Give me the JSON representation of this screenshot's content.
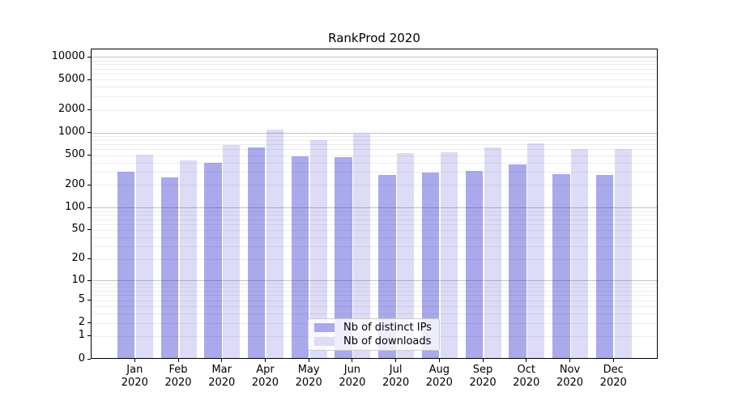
{
  "title": "RankProd 2020",
  "legend": {
    "items": [
      {
        "label": "Nb of distinct IPs",
        "color": "#a9a9eb"
      },
      {
        "label": "Nb of downloads",
        "color": "#dcdcf7"
      }
    ]
  },
  "colors": {
    "bar_distinct_ips": "rgba(40,40,205,0.40)",
    "bar_downloads": "rgba(40,40,205,0.16)",
    "grid_minor": "#ececec",
    "grid_major": "#c3c3c3",
    "axis": "#000000"
  },
  "chart_data": {
    "type": "bar",
    "title": "RankProd 2020",
    "categories": [
      "Jan",
      "Feb",
      "Mar",
      "Apr",
      "May",
      "Jun",
      "Jul",
      "Aug",
      "Sep",
      "Oct",
      "Nov",
      "Dec"
    ],
    "category_year": "2020",
    "series": [
      {
        "name": "Nb of distinct IPs",
        "values": [
          300,
          250,
          400,
          640,
          480,
          470,
          270,
          295,
          310,
          375,
          280,
          270
        ]
      },
      {
        "name": "Nb of downloads",
        "values": [
          505,
          425,
          680,
          1100,
          800,
          975,
          535,
          550,
          640,
          725,
          600,
          605
        ]
      }
    ],
    "xlabel": "",
    "ylabel": "",
    "y_scale": "log1p",
    "y_ticks": [
      0,
      1,
      2,
      5,
      10,
      20,
      50,
      100,
      200,
      500,
      1000,
      2000,
      5000,
      10000
    ],
    "y_major_gridlines": [
      10,
      100,
      1000,
      10000
    ],
    "ylim": [
      0,
      12900
    ],
    "grid": true,
    "legend_position": "lower center"
  }
}
